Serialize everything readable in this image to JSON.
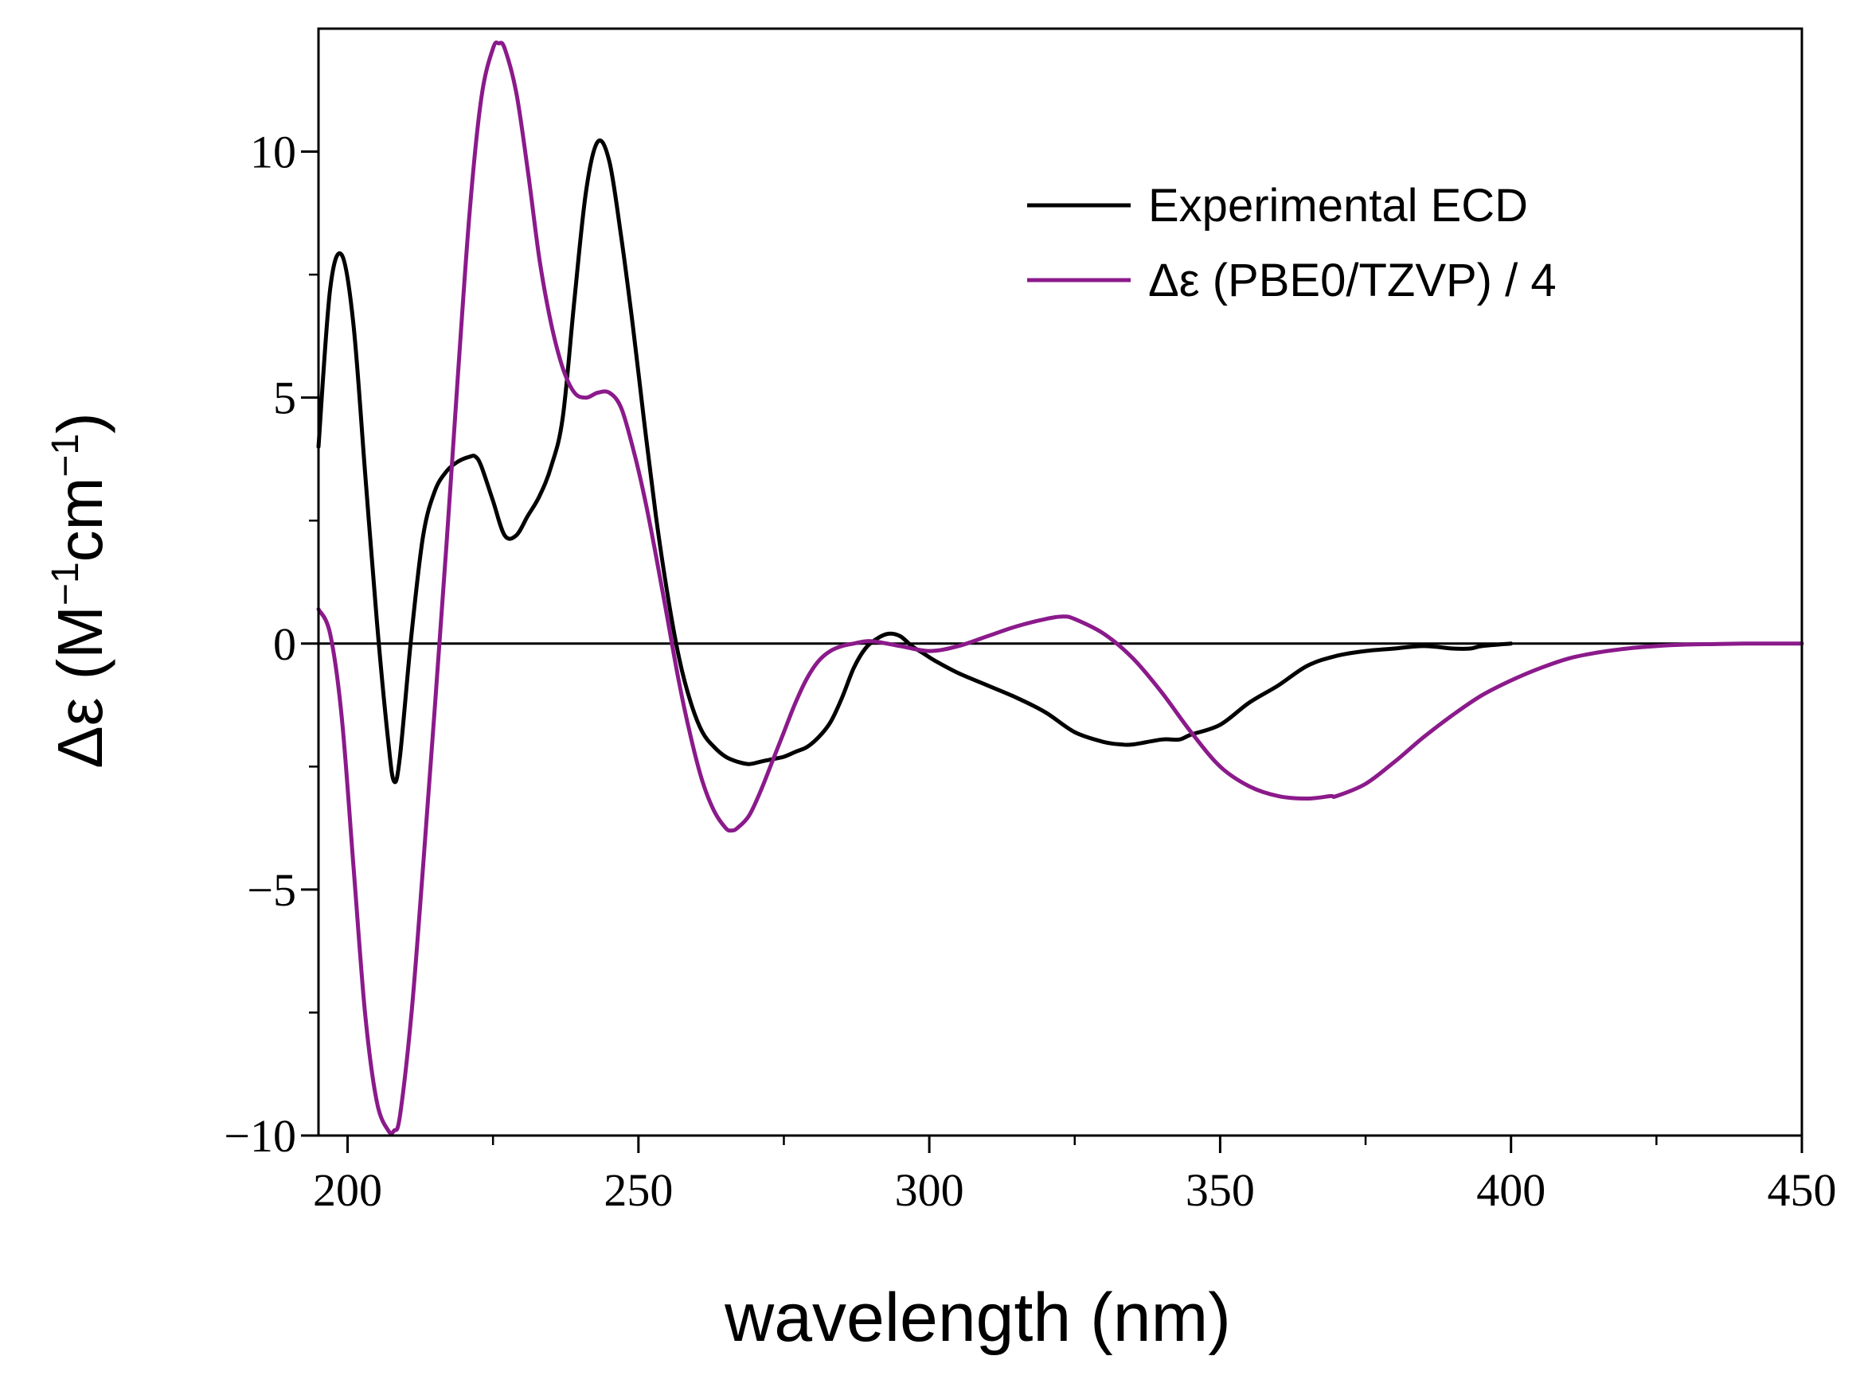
{
  "chart_data": {
    "type": "line",
    "title": "",
    "xlabel": "wavelength (nm)",
    "ylabel_parts": {
      "symbol": "Δε",
      "open": " (M",
      "exp1": "−1",
      "mid": "cm",
      "exp2": "−1",
      "close": ")"
    },
    "xlim": [
      195,
      450
    ],
    "ylim": [
      -10,
      12.5
    ],
    "xticks": [
      200,
      250,
      300,
      350,
      400,
      450
    ],
    "xtick_labels": [
      "200",
      "250",
      "300",
      "350",
      "400",
      "450"
    ],
    "yticks": [
      -10,
      -5,
      0,
      5,
      10
    ],
    "ytick_labels": [
      "−10",
      "−5",
      "0",
      "5",
      "10"
    ],
    "zero_line": true,
    "grid": false,
    "legend_position": "top-right",
    "series": [
      {
        "name": "Experimental ECD",
        "color": "#000000",
        "x": [
          195,
          197,
          199,
          201,
          203,
          205,
          207,
          208,
          209,
          211,
          213,
          215,
          217,
          219,
          221,
          222,
          223,
          225,
          227,
          229,
          231,
          233,
          235,
          237,
          239,
          241,
          243,
          245,
          247,
          249,
          251,
          253,
          255,
          257,
          259,
          261,
          263,
          265,
          267,
          269,
          271,
          273,
          275,
          277,
          279,
          281,
          283,
          285,
          287,
          289,
          291,
          293,
          295,
          297,
          299,
          301,
          305,
          310,
          315,
          320,
          325,
          330,
          333,
          335,
          340,
          343,
          345,
          350,
          355,
          360,
          365,
          370,
          375,
          380,
          385,
          390,
          393,
          395,
          400
        ],
        "values": [
          4.0,
          7.2,
          7.9,
          6.5,
          3.5,
          0.5,
          -2.0,
          -2.8,
          -2.3,
          0.2,
          2.2,
          3.1,
          3.5,
          3.7,
          3.8,
          3.8,
          3.6,
          2.9,
          2.2,
          2.2,
          2.6,
          3.0,
          3.6,
          4.6,
          7.0,
          9.2,
          10.2,
          9.8,
          8.3,
          6.5,
          4.5,
          2.6,
          1.0,
          -0.3,
          -1.2,
          -1.8,
          -2.1,
          -2.3,
          -2.4,
          -2.45,
          -2.4,
          -2.35,
          -2.3,
          -2.2,
          -2.1,
          -1.9,
          -1.6,
          -1.1,
          -0.5,
          -0.1,
          0.1,
          0.2,
          0.15,
          -0.05,
          -0.2,
          -0.35,
          -0.6,
          -0.85,
          -1.1,
          -1.4,
          -1.8,
          -2.0,
          -2.05,
          -2.05,
          -1.95,
          -1.95,
          -1.85,
          -1.65,
          -1.2,
          -0.85,
          -0.45,
          -0.25,
          -0.15,
          -0.1,
          -0.05,
          -0.1,
          -0.1,
          -0.05,
          0.0
        ]
      },
      {
        "name": "Δε (PBE0/TZVP) / 4",
        "color": "#8b1a8b",
        "x": [
          195,
          197,
          199,
          201,
          203,
          205,
          207,
          208,
          209,
          211,
          213,
          215,
          217,
          219,
          221,
          223,
          225,
          226,
          227,
          229,
          231,
          233,
          235,
          237,
          239,
          241,
          243,
          245,
          247,
          249,
          251,
          253,
          255,
          257,
          259,
          261,
          263,
          265,
          266,
          267,
          269,
          271,
          273,
          275,
          277,
          279,
          281,
          283,
          285,
          287,
          290,
          295,
          300,
          305,
          310,
          315,
          320,
          323,
          325,
          330,
          335,
          340,
          345,
          350,
          355,
          360,
          365,
          369,
          370,
          375,
          380,
          385,
          390,
          395,
          400,
          405,
          410,
          415,
          420,
          425,
          430,
          435,
          440,
          445,
          450
        ],
        "values": [
          0.7,
          0.2,
          -1.5,
          -4.5,
          -7.5,
          -9.3,
          -9.9,
          -9.9,
          -9.6,
          -7.5,
          -4.5,
          -1.3,
          2.0,
          5.5,
          8.8,
          11.1,
          12.1,
          12.2,
          12.1,
          11.2,
          9.6,
          7.8,
          6.5,
          5.6,
          5.1,
          5.0,
          5.1,
          5.1,
          4.8,
          4.0,
          3.0,
          1.8,
          0.5,
          -0.8,
          -1.9,
          -2.8,
          -3.4,
          -3.75,
          -3.8,
          -3.75,
          -3.5,
          -3.0,
          -2.4,
          -1.8,
          -1.2,
          -0.7,
          -0.35,
          -0.15,
          -0.05,
          0.0,
          0.05,
          -0.05,
          -0.15,
          -0.05,
          0.15,
          0.35,
          0.5,
          0.55,
          0.5,
          0.2,
          -0.3,
          -1.0,
          -1.8,
          -2.5,
          -2.9,
          -3.1,
          -3.15,
          -3.1,
          -3.1,
          -2.85,
          -2.4,
          -1.9,
          -1.45,
          -1.05,
          -0.75,
          -0.5,
          -0.3,
          -0.18,
          -0.1,
          -0.05,
          -0.02,
          -0.01,
          0.0,
          0.0,
          0.0
        ]
      }
    ]
  }
}
